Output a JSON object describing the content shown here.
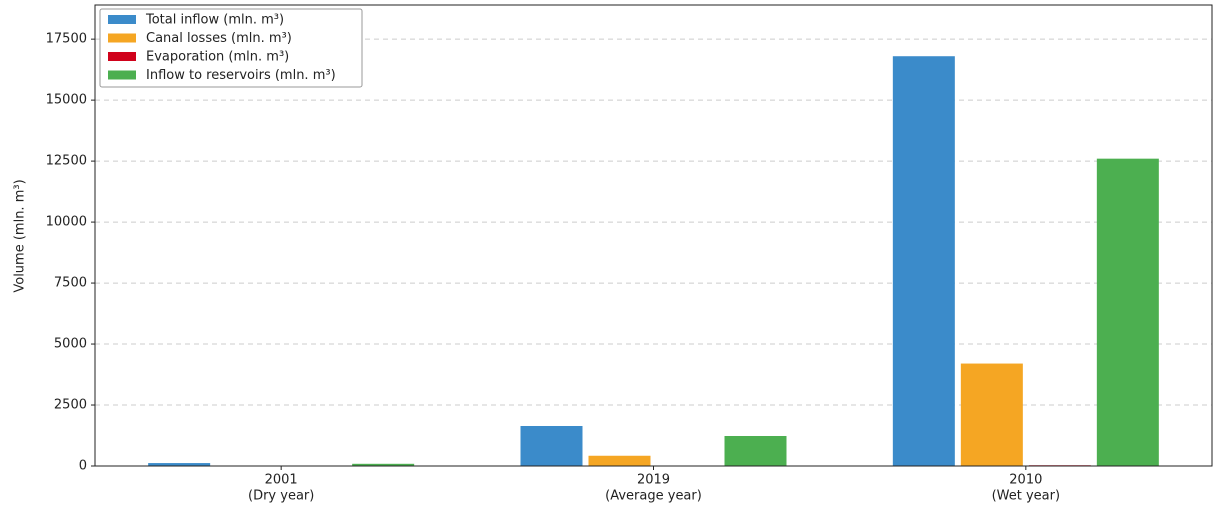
{
  "chart_data": {
    "type": "bar",
    "categories": [
      "2001",
      "2019",
      "2010"
    ],
    "category_sublabels": [
      "(Dry year)",
      "(Average year)",
      "(Wet year)"
    ],
    "y_label": "Volume (mln. m³)",
    "series": [
      {
        "name": "Total inflow (mln. m³)",
        "color": "#3b8bca",
        "values": [
          120,
          1640,
          16800
        ]
      },
      {
        "name": "Canal losses (mln. m³)",
        "color": "#f5a623",
        "values": [
          20,
          420,
          4200
        ]
      },
      {
        "name": "Evaporation (mln. m³)",
        "color": "#d0021b",
        "values": [
          5,
          15,
          30
        ]
      },
      {
        "name": "Inflow to reservoirs (mln. m³)",
        "color": "#4caf50",
        "values": [
          90,
          1230,
          12600
        ]
      }
    ],
    "ylim": [
      0,
      18900
    ],
    "yticks": [
      0,
      2500,
      5000,
      7500,
      10000,
      12500,
      15000,
      17500
    ],
    "grid": true,
    "legend": "upper-left"
  }
}
